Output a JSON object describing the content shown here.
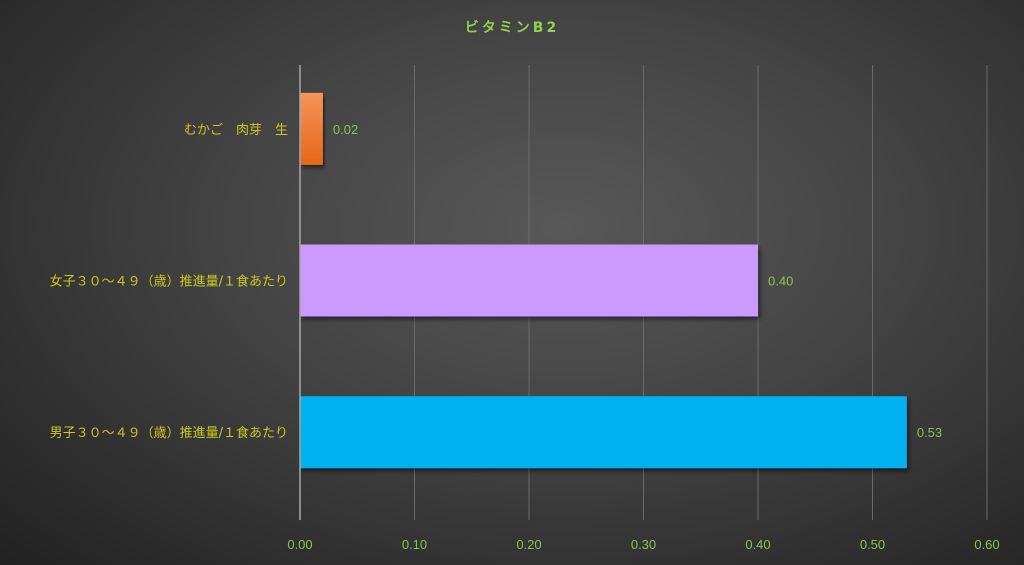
{
  "chart_data": {
    "type": "bar",
    "orientation": "horizontal",
    "title": "ビタミンB2",
    "categories": [
      "むかご　肉芽　生",
      "女子３０～４９（歳）推進量/１食あたり",
      "男子３０～４９（歳）推進量/１食あたり"
    ],
    "values": [
      0.02,
      0.4,
      0.53
    ],
    "data_labels": [
      "0.02",
      "0.40",
      "0.53"
    ],
    "colors": [
      "#ed7d31",
      "#cc99ff",
      "#00b0f0"
    ],
    "xlim": [
      0,
      0.6
    ],
    "xticks": [
      "0.00",
      "0.10",
      "0.20",
      "0.30",
      "0.40",
      "0.50",
      "0.60"
    ],
    "grid": true,
    "xlabel": "",
    "ylabel": ""
  }
}
